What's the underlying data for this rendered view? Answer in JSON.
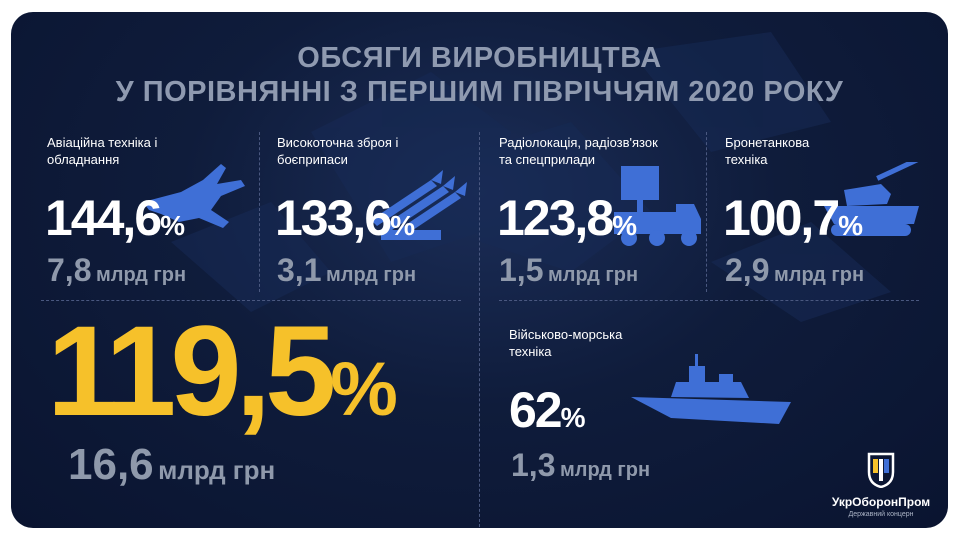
{
  "title": {
    "line1": "ОБСЯГИ ВИРОБНИЦТВА",
    "line2": "У ПОРІВНЯННІ З ПЕРШИМ ПІВРІЧЧЯМ 2020 РОКУ"
  },
  "categories": [
    {
      "label_line1": "Авіаційна техніка і",
      "label_line2": "обладнання",
      "percent": "144,6",
      "percent_unit": "%",
      "amount": "7,8",
      "amount_unit": "млрд грн",
      "icon": "fighter-jet-icon"
    },
    {
      "label_line1": "Високоточна зброя і",
      "label_line2": "боєприпаси",
      "percent": "133,6",
      "percent_unit": "%",
      "amount": "3,1",
      "amount_unit": "млрд грн",
      "icon": "missile-launcher-icon"
    },
    {
      "label_line1": "Радіолокація, радіозв'язок",
      "label_line2": "та спецприлади",
      "percent": "123,8",
      "percent_unit": "%",
      "amount": "1,5",
      "amount_unit": "млрд грн",
      "icon": "radar-truck-icon"
    },
    {
      "label_line1": "Бронетанкова",
      "label_line2": "техніка",
      "percent": "100,7",
      "percent_unit": "%",
      "amount": "2,9",
      "amount_unit": "млрд грн",
      "icon": "tank-icon"
    },
    {
      "label_line1": "Військово-морська",
      "label_line2": "техніка",
      "percent": "62",
      "percent_unit": "%",
      "amount": "1,3",
      "amount_unit": "млрд грн",
      "icon": "warship-icon"
    }
  ],
  "total": {
    "percent": "119,5",
    "percent_unit": "%",
    "amount": "16,6",
    "amount_unit": "млрд грн"
  },
  "logo": {
    "name": "УкрОборонПром",
    "subtitle": "Державний концерн",
    "icon": "trident-shield-icon"
  },
  "colors": {
    "background": "#0f1c3b",
    "accent_blue": "#3f6fd6",
    "highlight_yellow": "#f6c12a",
    "title_gray": "#8f9ab0",
    "amount_gray": "#8f99ab"
  }
}
